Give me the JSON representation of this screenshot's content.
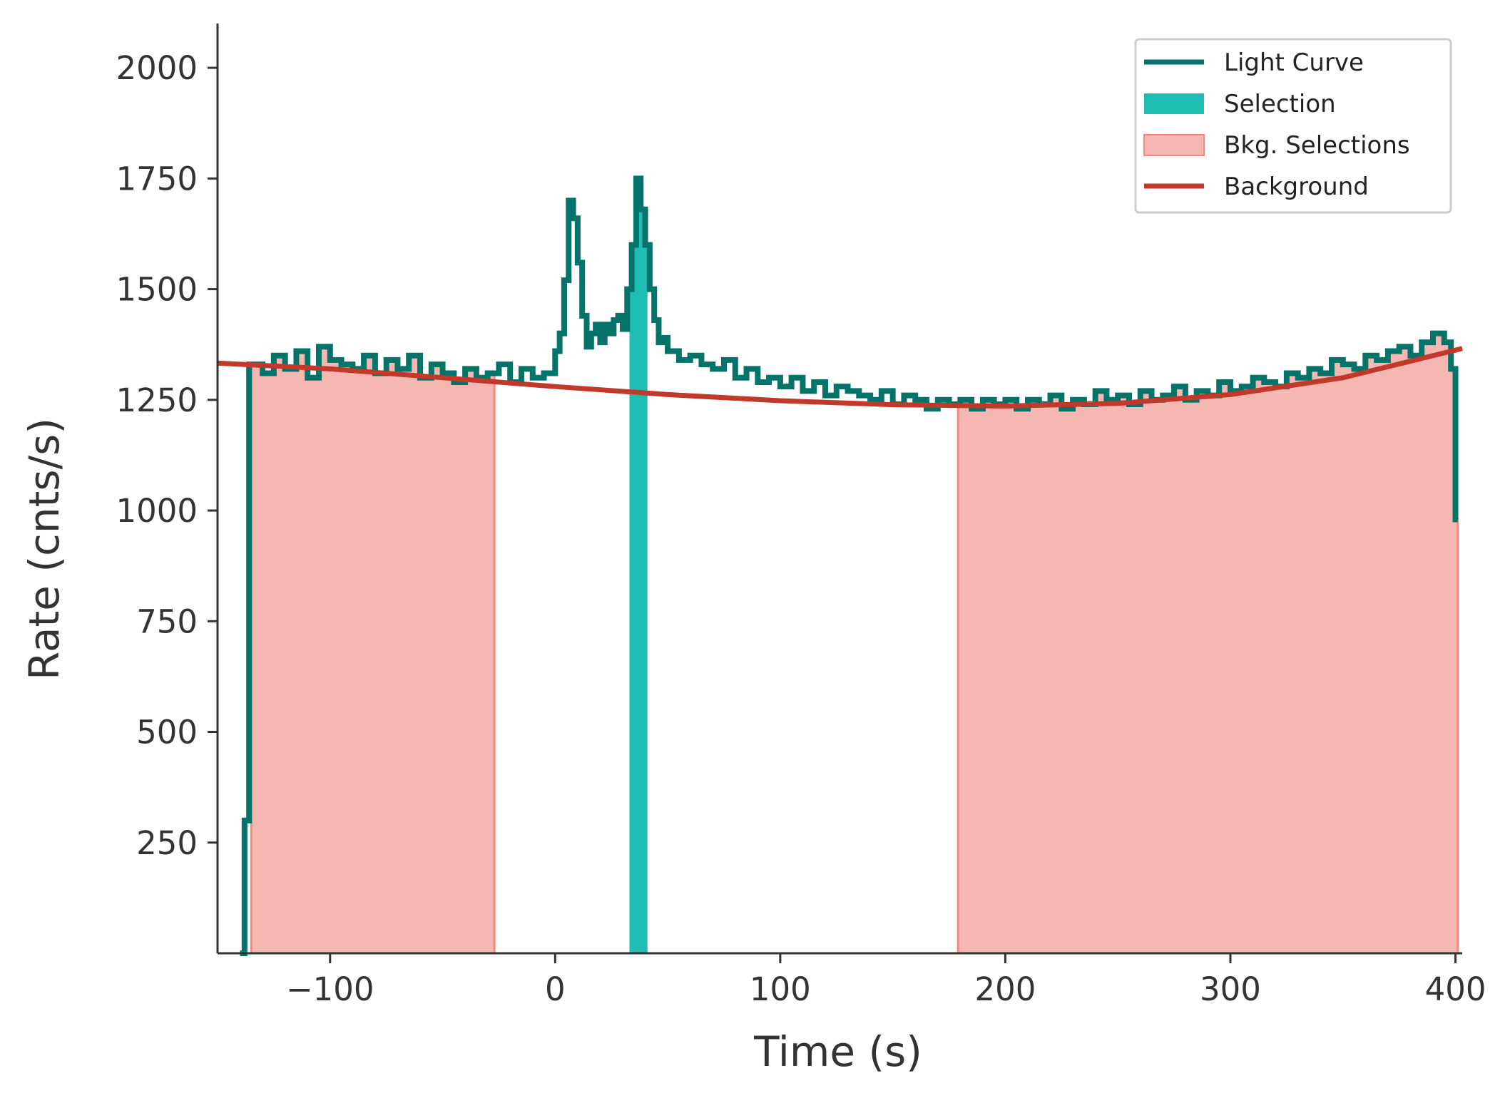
{
  "chart_data": {
    "type": "line",
    "title": "",
    "xlabel": "Time (s)",
    "ylabel": "Rate (cnts/s)",
    "xlim": [
      -150,
      403
    ],
    "ylim": [
      0,
      2100
    ],
    "xticks": [
      -100,
      0,
      100,
      200,
      300,
      400
    ],
    "xtick_labels": [
      "−100",
      "0",
      "100",
      "200",
      "300",
      "400"
    ],
    "yticks": [
      250,
      500,
      750,
      1000,
      1250,
      1500,
      1750,
      2000
    ],
    "ytick_labels": [
      "250",
      "500",
      "750",
      "1000",
      "1250",
      "1500",
      "1750",
      "2000"
    ],
    "grid": false,
    "legend_position": "top-right",
    "colors": {
      "light_curve": "#04736a",
      "selection": "#20bdb2",
      "bkg_selection_fill": "#f5b7b1",
      "bkg_selection_edge": "#f08a80",
      "background": "#c0392b",
      "axes": "#333333"
    },
    "legend": [
      {
        "label": "Light Curve",
        "kind": "line",
        "color": "#04736a"
      },
      {
        "label": "Selection",
        "kind": "patch",
        "color": "#20bdb2"
      },
      {
        "label": "Bkg. Selections",
        "kind": "patch",
        "color": "#f5b7b1"
      },
      {
        "label": "Background",
        "kind": "line",
        "color": "#c0392b"
      }
    ],
    "series": [
      {
        "name": "Light Curve",
        "kind": "step",
        "x": [
          -140,
          -138,
          -136,
          -130,
          -125,
          -120,
          -115,
          -110,
          -105,
          -100,
          -95,
          -90,
          -85,
          -80,
          -75,
          -70,
          -65,
          -60,
          -55,
          -50,
          -45,
          -40,
          -35,
          -30,
          -25,
          -20,
          -15,
          -10,
          -5,
          0,
          2,
          4,
          6,
          8,
          10,
          12,
          14,
          16,
          18,
          20,
          22,
          24,
          26,
          28,
          30,
          32,
          34,
          36,
          38,
          40,
          42,
          44,
          46,
          48,
          50,
          55,
          60,
          65,
          70,
          75,
          80,
          85,
          90,
          95,
          100,
          105,
          110,
          115,
          120,
          125,
          130,
          135,
          140,
          145,
          150,
          155,
          160,
          165,
          170,
          175,
          180,
          185,
          190,
          195,
          200,
          205,
          210,
          215,
          220,
          225,
          230,
          235,
          240,
          245,
          250,
          255,
          260,
          265,
          270,
          275,
          280,
          285,
          290,
          295,
          300,
          305,
          310,
          315,
          320,
          325,
          330,
          335,
          340,
          345,
          350,
          355,
          360,
          365,
          370,
          375,
          380,
          385,
          390,
          395,
          398,
          400,
          401
        ],
        "y": [
          0,
          300,
          1330,
          1310,
          1350,
          1320,
          1360,
          1300,
          1370,
          1340,
          1330,
          1320,
          1350,
          1310,
          1340,
          1320,
          1350,
          1300,
          1330,
          1310,
          1290,
          1320,
          1300,
          1310,
          1330,
          1290,
          1320,
          1300,
          1310,
          1360,
          1400,
          1520,
          1700,
          1660,
          1560,
          1440,
          1370,
          1400,
          1420,
          1380,
          1420,
          1400,
          1430,
          1440,
          1410,
          1500,
          1600,
          1750,
          1680,
          1600,
          1500,
          1430,
          1380,
          1390,
          1360,
          1340,
          1350,
          1330,
          1320,
          1340,
          1300,
          1320,
          1290,
          1300,
          1280,
          1300,
          1270,
          1290,
          1260,
          1280,
          1270,
          1260,
          1250,
          1270,
          1240,
          1260,
          1250,
          1230,
          1250,
          1240,
          1250,
          1230,
          1250,
          1240,
          1250,
          1230,
          1250,
          1240,
          1260,
          1230,
          1250,
          1240,
          1270,
          1250,
          1260,
          1240,
          1270,
          1250,
          1260,
          1280,
          1250,
          1270,
          1260,
          1290,
          1270,
          1280,
          1300,
          1290,
          1280,
          1310,
          1300,
          1320,
          1310,
          1340,
          1330,
          1320,
          1350,
          1340,
          1360,
          1370,
          1350,
          1380,
          1400,
          1380,
          1320,
          980,
          980
        ]
      },
      {
        "name": "Background",
        "kind": "line",
        "x": [
          -150,
          -100,
          -50,
          0,
          50,
          100,
          150,
          200,
          250,
          300,
          350,
          403
        ],
        "y": [
          1333,
          1320,
          1300,
          1280,
          1262,
          1248,
          1239,
          1236,
          1242,
          1262,
          1300,
          1366
        ]
      }
    ],
    "selections": [
      {
        "name": "Selection",
        "x0": 33,
        "x1": 41
      }
    ],
    "bkg_selections": [
      {
        "name": "Bkg. Selections",
        "x0": -135,
        "x1": -27
      },
      {
        "name": "Bkg. Selections",
        "x0": 179,
        "x1": 401
      }
    ]
  }
}
